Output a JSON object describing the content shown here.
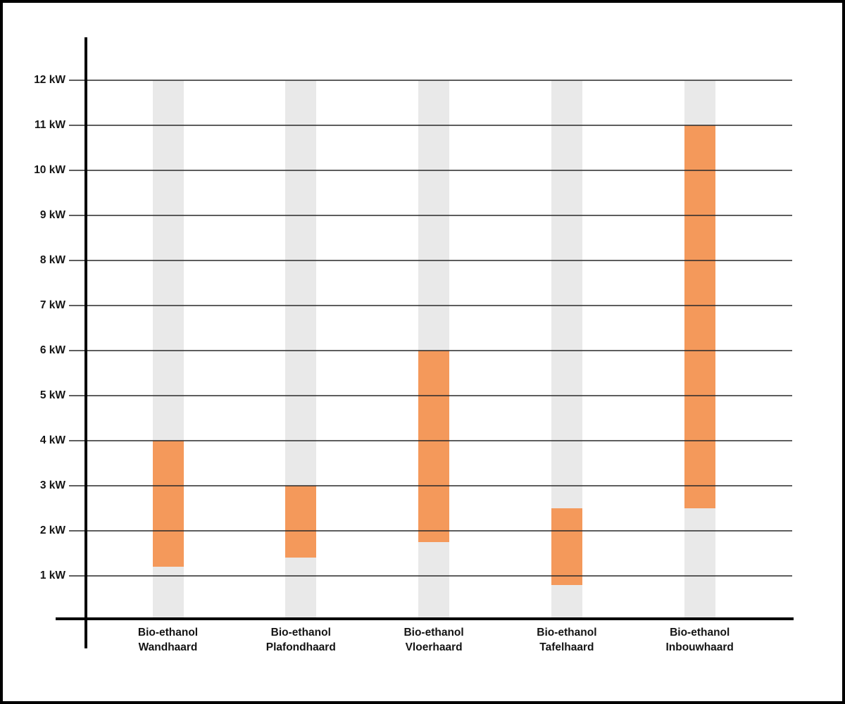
{
  "chart_data": {
    "type": "bar",
    "subtype": "floating-range-bars",
    "orientation": "vertical",
    "unit": "kW",
    "categories": [
      "Bio-ethanol Wandhaard",
      "Bio-ethanol Plafondhaard",
      "Bio-ethanol Vloerhaard",
      "Bio-ethanol Tafelhaard",
      "Bio-ethanol Inbouwhaard"
    ],
    "category_label_lines": [
      [
        "Bio-ethanol",
        "Wandhaard"
      ],
      [
        "Bio-ethanol",
        "Plafondhaard"
      ],
      [
        "Bio-ethanol",
        "Vloerhaard"
      ],
      [
        "Bio-ethanol",
        "Tafelhaard"
      ],
      [
        "Bio-ethanol",
        "Inbouwhaard"
      ]
    ],
    "ranges_kw": [
      {
        "min": 1.2,
        "max": 4
      },
      {
        "min": 1.4,
        "max": 3
      },
      {
        "min": 1.75,
        "max": 6
      },
      {
        "min": 0.8,
        "max": 2.5
      },
      {
        "min": 2.5,
        "max": 11
      }
    ],
    "background_bar_range_kw": {
      "min": 0,
      "max": 12
    },
    "y_tick_values": [
      1,
      2,
      3,
      4,
      5,
      6,
      7,
      8,
      9,
      10,
      11,
      12
    ],
    "y_tick_labels": [
      "1 kW",
      "2 kW",
      "3 kW",
      "4 kW",
      "5 kW",
      "6 kW",
      "7 kW",
      "8 kW",
      "9 kW",
      "10 kW",
      "11 kW",
      "12 kW"
    ],
    "ylim": [
      0,
      12
    ],
    "grid": true,
    "legend": false,
    "title": "",
    "colors": {
      "range_bar": "#F4995B",
      "background_bar": "#E9E9E9",
      "gridline": "rgba(40,40,40,0.75)",
      "axis": "#000000",
      "text": "#141414"
    }
  }
}
